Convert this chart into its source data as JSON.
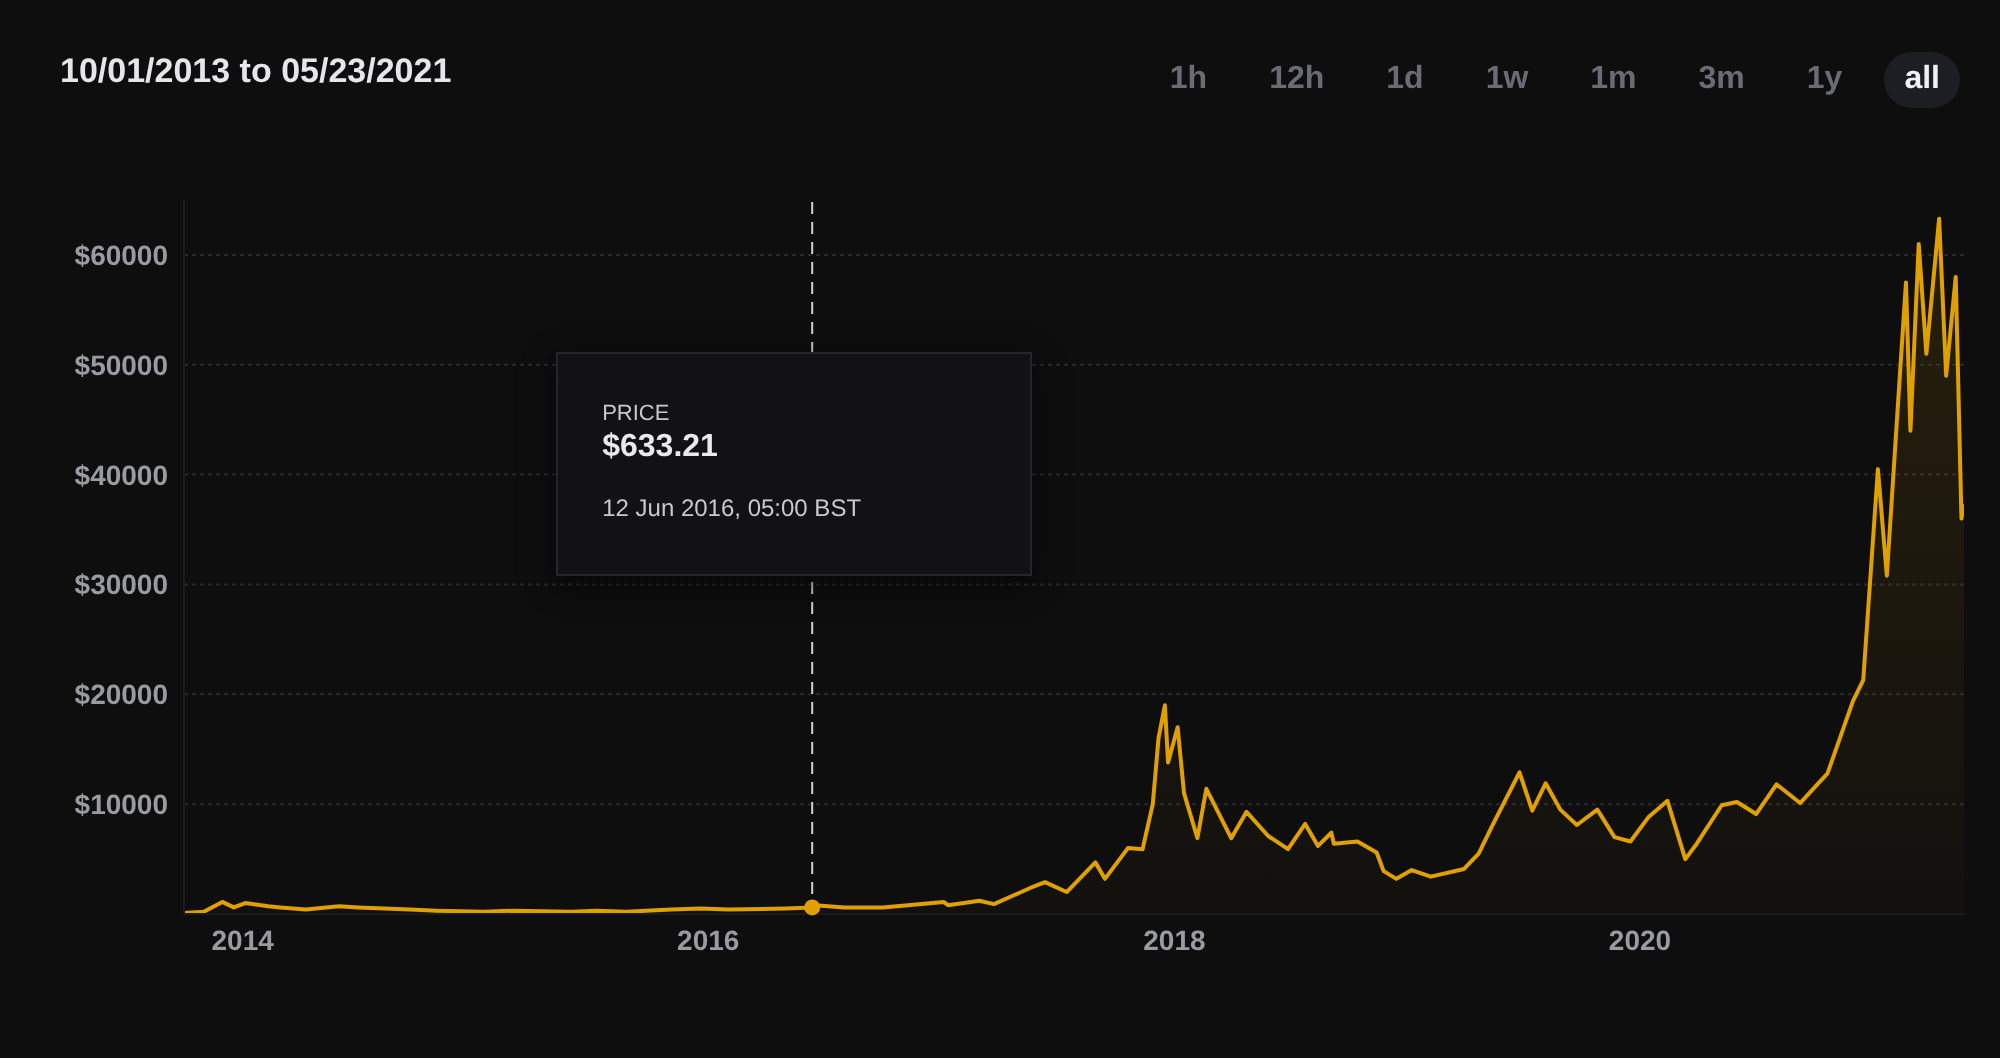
{
  "chart_data": {
    "type": "area",
    "title": "10/01/2013 to 05/23/2021",
    "annotations": [
      "1h",
      "12h",
      "1d",
      "1w",
      "1m",
      "3m",
      "1y",
      "all",
      "PRICE",
      "$633.21",
      "12 Jun 2016, 05:00 BST"
    ],
    "ref_lines": [
      {
        "axis": "x",
        "value": "2016-06-12",
        "color": "#d0d0d0",
        "line_style": "dashed"
      }
    ],
    "x": [
      "2013-10-01",
      "2013-11-01",
      "2013-11-30",
      "2013-12-18",
      "2014-01-05",
      "2014-02-10",
      "2014-03-01",
      "2014-04-10",
      "2014-06-01",
      "2014-07-01",
      "2014-09-20",
      "2014-11-01",
      "2015-01-14",
      "2015-03-01",
      "2015-06-01",
      "2015-07-10",
      "2015-08-25",
      "2015-11-04",
      "2015-12-20",
      "2016-02-01",
      "2016-05-01",
      "2016-06-12",
      "2016-06-17",
      "2016-08-01",
      "2016-10-01",
      "2017-01-04",
      "2017-01-11",
      "2017-03-01",
      "2017-03-24",
      "2017-05-25",
      "2017-06-12",
      "2017-07-16",
      "2017-08-30",
      "2017-09-14",
      "2017-10-20",
      "2017-11-12",
      "2017-11-28",
      "2017-12-07",
      "2017-12-17",
      "2017-12-22",
      "2018-01-06",
      "2018-01-16",
      "2018-02-06",
      "2018-02-20",
      "2018-03-31",
      "2018-04-24",
      "2018-05-28",
      "2018-06-28",
      "2018-07-25",
      "2018-08-14",
      "2018-09-04",
      "2018-09-08",
      "2018-10-15",
      "2018-11-14",
      "2018-11-25",
      "2018-12-15",
      "2019-01-08",
      "2019-02-07",
      "2019-03-31",
      "2019-04-23",
      "2019-05-14",
      "2019-06-26",
      "2019-07-16",
      "2019-08-06",
      "2019-08-29",
      "2019-09-24",
      "2019-10-26",
      "2019-11-22",
      "2019-12-17",
      "2020-01-14",
      "2020-02-13",
      "2020-03-12",
      "2020-03-30",
      "2020-05-08",
      "2020-06-01",
      "2020-07-01",
      "2020-08-02",
      "2020-09-08",
      "2020-10-21",
      "2020-11-30",
      "2020-12-16",
      "2021-01-08",
      "2021-01-22",
      "2021-02-08",
      "2021-02-21",
      "2021-02-28",
      "2021-03-13",
      "2021-03-25",
      "2021-04-14",
      "2021-04-25",
      "2021-05-10",
      "2021-05-19",
      "2021-05-23"
    ],
    "series": [
      {
        "color": "#e0a000",
        "values": [
          100,
          200,
          1100,
          600,
          1000,
          700,
          600,
          400,
          700,
          600,
          400,
          300,
          200,
          300,
          200,
          300,
          200,
          400,
          500,
          400,
          500,
          600,
          800,
          600,
          600,
          1100,
          800,
          1200,
          900,
          2500,
          2900,
          2000,
          4700,
          3200,
          6000,
          5900,
          10000,
          16000,
          19000,
          13800,
          17000,
          11000,
          6900,
          11400,
          6900,
          9300,
          7100,
          5900,
          8200,
          6200,
          7400,
          6400,
          6600,
          5600,
          3900,
          3200,
          4000,
          3400,
          4100,
          5500,
          8000,
          12900,
          9400,
          11900,
          9500,
          8100,
          9500,
          7000,
          6600,
          8800,
          10300,
          5000,
          6400,
          9900,
          10200,
          9100,
          11800,
          10100,
          12800,
          19400,
          21300,
          40500,
          30800,
          46000,
          57500,
          44000,
          61000,
          51000,
          63300,
          49000,
          58000,
          36000,
          37300
        ]
      }
    ],
    "xlim": [
      "2013-10-01",
      "2021-05-23"
    ],
    "xticks": [
      "2014",
      "2016",
      "2018",
      "2020"
    ],
    "ylim": [
      0,
      65000
    ],
    "yticks": [
      {
        "value": 10000,
        "label": "$10000"
      },
      {
        "value": 20000,
        "label": "$20000"
      },
      {
        "value": 30000,
        "label": "$30000"
      },
      {
        "value": 40000,
        "label": "$40000"
      },
      {
        "value": 50000,
        "label": "$50000"
      },
      {
        "value": 60000,
        "label": "$60000"
      }
    ],
    "grid": "y",
    "marker": "none",
    "line_style": "solid"
  }
}
